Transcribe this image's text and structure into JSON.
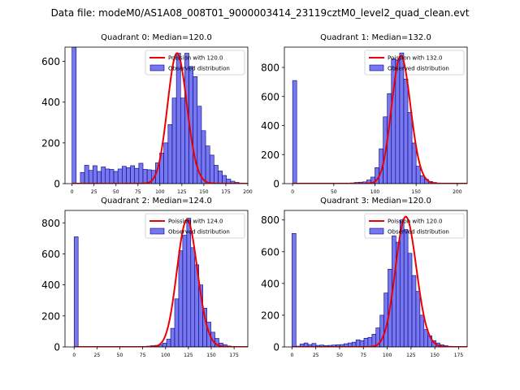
{
  "figure_title": "Data file: modeM0/AS1A08_008T01_9000003414_23119cztM0_level2_quad_clean.evt",
  "colors": {
    "bar_fill": "#7777ee",
    "bar_edge": "#000088",
    "fit_line": "#ee0000"
  },
  "chart_data": [
    {
      "type": "bar",
      "title": "Quadrant 0: Median=120.0",
      "legend": {
        "position": "top-right",
        "line_label": "Poission with 120.0",
        "bar_label": "Observed distribution"
      },
      "xlim": [
        -8,
        200
      ],
      "ylim": [
        0,
        670
      ],
      "xticks": [
        0,
        25,
        50,
        75,
        100,
        125,
        150,
        175,
        200
      ],
      "yticks": [
        0,
        200,
        400,
        600
      ],
      "bin_start": 0,
      "bin_width": 4.75,
      "values": [
        670,
        0,
        55,
        90,
        65,
        88,
        60,
        82,
        72,
        70,
        60,
        72,
        85,
        78,
        88,
        75,
        100,
        70,
        68,
        65,
        102,
        150,
        200,
        290,
        420,
        640,
        420,
        640,
        575,
        525,
        380,
        260,
        185,
        140,
        90,
        62,
        40,
        22,
        12,
        6,
        3
      ],
      "fit": {
        "mu": 120,
        "amp": 640
      }
    },
    {
      "type": "bar",
      "title": "Quadrant 1: Median=132.0",
      "legend": {
        "position": "top-right",
        "line_label": "Poission with 132.0",
        "bar_label": "Observed distribution"
      },
      "xlim": [
        -10,
        212
      ],
      "ylim": [
        0,
        940
      ],
      "xticks": [
        0,
        50,
        100,
        150,
        200
      ],
      "yticks": [
        0,
        200,
        400,
        600,
        800
      ],
      "bin_start": 0,
      "bin_width": 5.0,
      "values": [
        710,
        0,
        0,
        0,
        0,
        0,
        0,
        0,
        0,
        0,
        2,
        2,
        3,
        3,
        5,
        8,
        10,
        12,
        25,
        45,
        110,
        240,
        460,
        620,
        860,
        850,
        900,
        720,
        490,
        280,
        120,
        55,
        30,
        15,
        8,
        4,
        2,
        1,
        0,
        0,
        0
      ],
      "fit": {
        "mu": 132,
        "amp": 880
      }
    },
    {
      "type": "bar",
      "title": "Quadrant 2: Median=124.0",
      "legend": {
        "position": "top-right",
        "line_label": "Poission with 124.0",
        "bar_label": "Observed distribution"
      },
      "xlim": [
        -10,
        190
      ],
      "ylim": [
        0,
        880
      ],
      "xticks": [
        0,
        25,
        50,
        75,
        100,
        125,
        150,
        175
      ],
      "yticks": [
        0,
        200,
        400,
        600,
        800
      ],
      "bin_start": 0,
      "bin_width": 4.4,
      "values": [
        710,
        0,
        0,
        0,
        0,
        0,
        0,
        0,
        0,
        0,
        0,
        0,
        0,
        0,
        0,
        0,
        2,
        3,
        5,
        8,
        10,
        15,
        25,
        50,
        120,
        310,
        620,
        720,
        830,
        640,
        530,
        400,
        250,
        160,
        95,
        55,
        25,
        15,
        6,
        3,
        1
      ],
      "fit": {
        "mu": 124,
        "amp": 820
      }
    },
    {
      "type": "bar",
      "title": "Quadrant 3: Median=120.0",
      "legend": {
        "position": "top-right",
        "line_label": "Poission with 120.0",
        "bar_label": "Observed distribution"
      },
      "xlim": [
        -8,
        184
      ],
      "ylim": [
        0,
        860
      ],
      "xticks": [
        0,
        25,
        50,
        75,
        100,
        125,
        150,
        175
      ],
      "yticks": [
        0,
        200,
        400,
        600,
        800
      ],
      "bin_start": 0,
      "bin_width": 4.2,
      "values": [
        715,
        5,
        18,
        25,
        15,
        22,
        10,
        12,
        8,
        10,
        12,
        14,
        15,
        20,
        25,
        30,
        45,
        40,
        55,
        60,
        80,
        120,
        200,
        340,
        490,
        700,
        660,
        800,
        740,
        590,
        450,
        350,
        200,
        110,
        70,
        40,
        25,
        14,
        8,
        4,
        2
      ],
      "fit": {
        "mu": 120,
        "amp": 820
      }
    }
  ]
}
